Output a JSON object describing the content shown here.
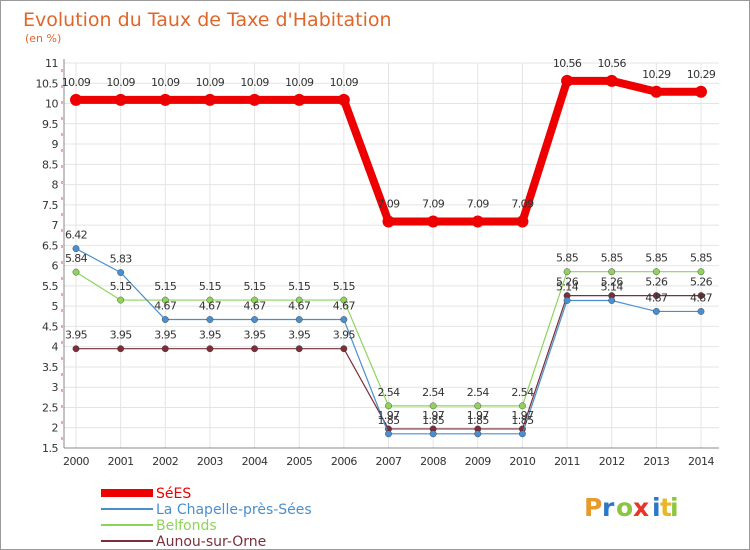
{
  "chart_data": {
    "type": "line",
    "title": "Evolution du Taux de Taxe d'Habitation",
    "subtitle": "(en %)",
    "x": [
      "2000",
      "2001",
      "2002",
      "2003",
      "2004",
      "2005",
      "2006",
      "2007",
      "2008",
      "2009",
      "2010",
      "2011",
      "2012",
      "2013",
      "2014"
    ],
    "ylim": [
      1.5,
      11
    ],
    "yticks": [
      "1.5",
      "2",
      "2.5",
      "3",
      "3.5",
      "4",
      "4.5",
      "5",
      "5.5",
      "6",
      "6.5",
      "7",
      "7.5",
      "8",
      "8.5",
      "9",
      "9.5",
      "10",
      "10.5",
      "11"
    ],
    "grid": true,
    "legend_position": "bottom-left",
    "series": [
      {
        "name": "SéES",
        "color": "#ee0000",
        "values": [
          10.09,
          10.09,
          10.09,
          10.09,
          10.09,
          10.09,
          10.09,
          7.09,
          7.09,
          7.09,
          7.09,
          10.56,
          10.56,
          10.29,
          10.29
        ],
        "labels": [
          "10.09",
          "10.09",
          "10.09",
          "10.09",
          "10.09",
          "10.09",
          "10.09",
          "7.09",
          "7.09",
          "7.09",
          "7.09",
          "10.56",
          "10.56",
          "10.29",
          "10.29"
        ]
      },
      {
        "name": "La Chapelle-près-Sées",
        "color": "#4a8fcd",
        "values": [
          6.42,
          5.83,
          4.67,
          4.67,
          4.67,
          4.67,
          4.67,
          1.85,
          1.85,
          1.85,
          1.85,
          5.14,
          5.14,
          4.87,
          4.87
        ],
        "labels": [
          "6.42",
          "5.83",
          "4.67",
          "4.67",
          "4.67",
          "4.67",
          "4.67",
          "1.85",
          "1.85",
          "1.85",
          "1.85",
          "5.14",
          "5.14",
          "4.87",
          "4.87"
        ]
      },
      {
        "name": "Belfonds",
        "color": "#8fd45a",
        "values": [
          5.84,
          5.15,
          5.15,
          5.15,
          5.15,
          5.15,
          5.15,
          2.54,
          2.54,
          2.54,
          2.54,
          5.85,
          5.85,
          5.85,
          5.85
        ],
        "labels": [
          "5.84",
          "5.15",
          "5.15",
          "5.15",
          "5.15",
          "5.15",
          "5.15",
          "2.54",
          "2.54",
          "2.54",
          "2.54",
          "5.85",
          "5.85",
          "5.85",
          "5.85"
        ]
      },
      {
        "name": "Aunou-sur-Orne",
        "color": "#7a2f3b",
        "values": [
          3.95,
          3.95,
          3.95,
          3.95,
          3.95,
          3.95,
          3.95,
          1.97,
          1.97,
          1.97,
          1.97,
          5.26,
          5.26,
          5.26,
          5.26
        ],
        "labels": [
          "3.95",
          "3.95",
          "3.95",
          "3.95",
          "3.95",
          "3.95",
          "3.95",
          "1.97",
          "1.97",
          "1.97",
          "1.97",
          "5.26",
          "5.26",
          "5.26",
          "5.26"
        ]
      }
    ]
  },
  "logo": {
    "text": "Proxiti",
    "letter_colors": [
      "#e89a2a",
      "#2a78c8",
      "#8cc63f",
      "#e8352a",
      "#2a78c8",
      "#e8b82a",
      "#8cc63f"
    ]
  }
}
